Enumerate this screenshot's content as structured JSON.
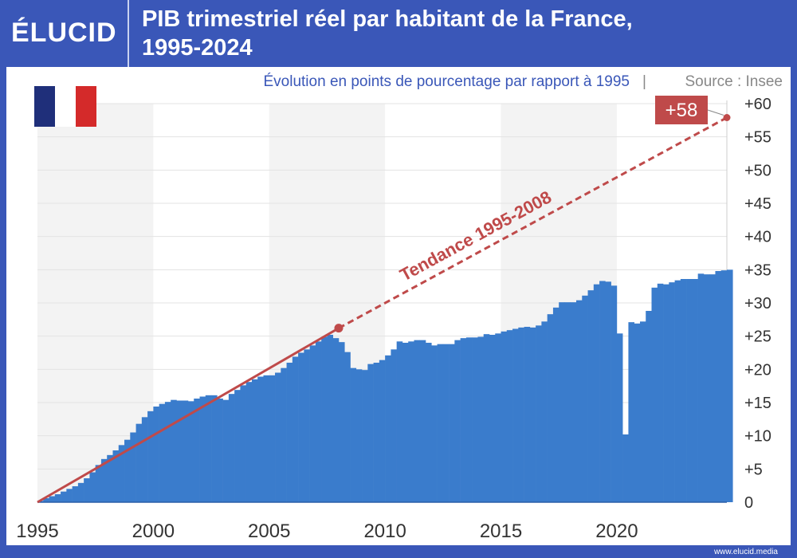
{
  "logo": "ÉLUCID",
  "title_line1": "PIB trimestriel réel par habitant de la France,",
  "title_line2": "1995-2024",
  "subtitle": "Évolution en points de pourcentage par rapport à 1995",
  "source": "Source : Insee",
  "footer": "www.elucid.media",
  "colors": {
    "header": "#3a57b8",
    "bars": "#3a7ccc",
    "trend": "#bf4a4a",
    "band": "#f3f3f3"
  },
  "chart_data": {
    "type": "bar",
    "x_ticks": [
      "1995",
      "2000",
      "2005",
      "2010",
      "2015",
      "2020"
    ],
    "y_ticks": [
      "0",
      "+5",
      "+10",
      "+15",
      "+20",
      "+25",
      "+30",
      "+35",
      "+40",
      "+45",
      "+50",
      "+55",
      "+60"
    ],
    "ylim": [
      0,
      60
    ],
    "xlim": [
      1995,
      2024.75
    ],
    "quarters_start": 1995,
    "values": [
      0.2,
      0.6,
      0.9,
      1.2,
      1.6,
      2.0,
      2.4,
      2.9,
      3.6,
      4.5,
      5.6,
      6.5,
      7.1,
      7.8,
      8.6,
      9.4,
      10.5,
      11.8,
      12.8,
      13.7,
      14.4,
      14.8,
      15.1,
      15.4,
      15.3,
      15.3,
      15.2,
      15.6,
      15.9,
      16.1,
      16.1,
      15.6,
      15.4,
      16.3,
      16.9,
      17.6,
      18.1,
      18.5,
      18.9,
      19.1,
      19.1,
      19.5,
      20.2,
      21.0,
      21.9,
      22.5,
      23.0,
      23.6,
      24.2,
      24.9,
      25.2,
      24.7,
      24.1,
      22.6,
      20.2,
      20.0,
      19.9,
      20.8,
      21.0,
      21.4,
      22.1,
      23.0,
      24.2,
      24.0,
      24.2,
      24.4,
      24.4,
      24.0,
      23.6,
      23.8,
      23.8,
      23.8,
      24.4,
      24.7,
      24.8,
      24.8,
      24.9,
      25.3,
      25.2,
      25.4,
      25.7,
      25.9,
      26.1,
      26.3,
      26.4,
      26.3,
      26.6,
      27.2,
      28.3,
      29.3,
      30.1,
      30.1,
      30.1,
      30.4,
      31.1,
      31.9,
      32.8,
      33.3,
      33.2,
      32.6,
      25.4,
      10.2,
      27.1,
      26.9,
      27.2,
      28.8,
      32.3,
      32.9,
      32.8,
      33.1,
      33.4,
      33.6,
      33.6,
      33.6,
      34.4,
      34.3,
      34.3,
      34.8,
      34.9,
      35.0
    ],
    "trend": {
      "label": "Tendance 1995-2008",
      "start": [
        1995,
        0
      ],
      "mid": [
        2008,
        26.2
      ],
      "end": [
        2024.75,
        57.9
      ],
      "end_label": "+58"
    }
  }
}
